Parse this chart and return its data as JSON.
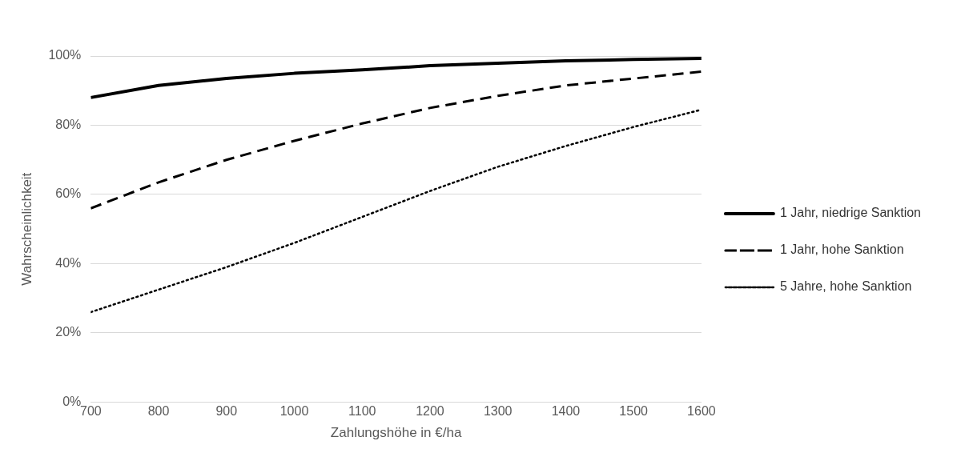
{
  "chart_data": {
    "type": "line",
    "xlabel": "Zahlungshöhe in €/ha",
    "ylabel": "Wahrscheinlichkeit",
    "x": [
      700,
      800,
      900,
      1000,
      1100,
      1200,
      1300,
      1400,
      1500,
      1600
    ],
    "xlim": [
      700,
      1600
    ],
    "xticks": [
      700,
      800,
      900,
      1000,
      1100,
      1200,
      1300,
      1400,
      1500,
      1600
    ],
    "ylim": [
      0,
      100
    ],
    "yticks": [
      {
        "value": 0,
        "label": "0%"
      },
      {
        "value": 20,
        "label": "20%"
      },
      {
        "value": 40,
        "label": "40%"
      },
      {
        "value": 60,
        "label": "60%"
      },
      {
        "value": 80,
        "label": "80%"
      },
      {
        "value": 100,
        "label": "100%"
      }
    ],
    "grid": "y",
    "legend": "right",
    "marker": "none",
    "series": [
      {
        "name": "1 Jahr, niedrige Sanktion",
        "color": "#000000",
        "line_style": "solid",
        "values": [
          88,
          91.5,
          93.5,
          95,
          96,
          97.2,
          97.9,
          98.6,
          99,
          99.3
        ]
      },
      {
        "name": "1 Jahr, hohe Sanktion",
        "color": "#000000",
        "line_style": "dashed",
        "values": [
          56,
          63.5,
          70,
          75.5,
          80.5,
          85,
          88.5,
          91.5,
          93.5,
          95.5
        ]
      },
      {
        "name": "5 Jahre, hohe Sanktion",
        "color": "#000000",
        "line_style": "dotted",
        "values": [
          26,
          32.5,
          39,
          46,
          53.5,
          61,
          68,
          74,
          79.5,
          84.5
        ]
      }
    ]
  }
}
